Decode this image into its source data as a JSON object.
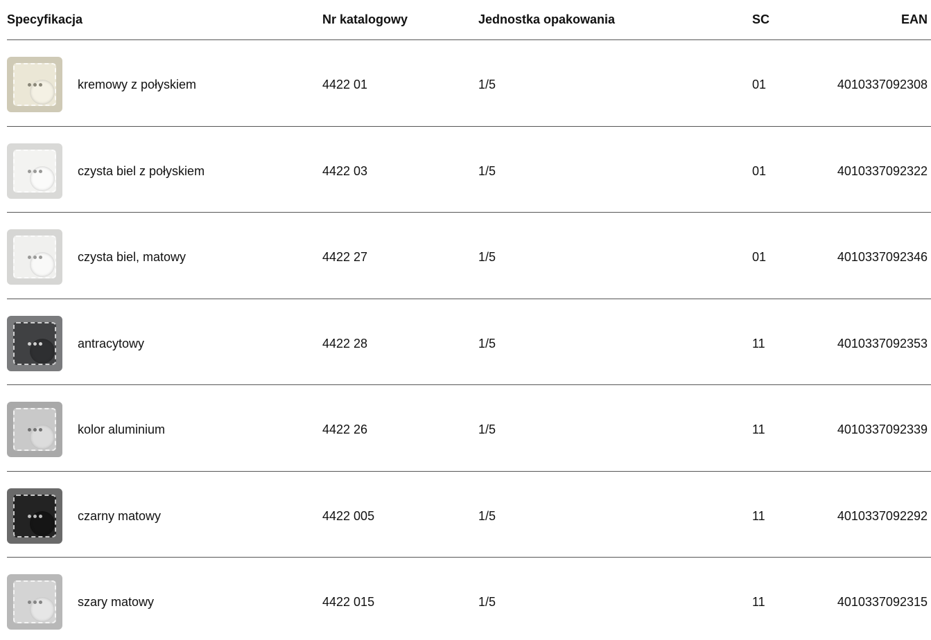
{
  "table": {
    "header": [
      "Specyfikacja",
      "Nr katalogowy",
      "Jednostka opakowania",
      "SC",
      "EAN"
    ],
    "rows": [
      [
        "kremowy z połyskiem",
        "4422 01",
        "1/5",
        "01",
        "4010337092308"
      ],
      [
        "czysta biel z połyskiem",
        "4422 03",
        "1/5",
        "01",
        "4010337092322"
      ],
      [
        "czysta biel, matowy",
        "4422 27",
        "1/5",
        "01",
        "4010337092346"
      ],
      [
        "antracytowy",
        "4422 28",
        "1/5",
        "11",
        "4010337092353"
      ],
      [
        "kolor aluminium",
        "4422 26",
        "1/5",
        "11",
        "4010337092339"
      ],
      [
        "czarny matowy",
        "4422 005",
        "1/5",
        "11",
        "4010337092292"
      ],
      [
        "szary matowy",
        "4422 015",
        "1/5",
        "11",
        "4010337092315"
      ]
    ]
  }
}
